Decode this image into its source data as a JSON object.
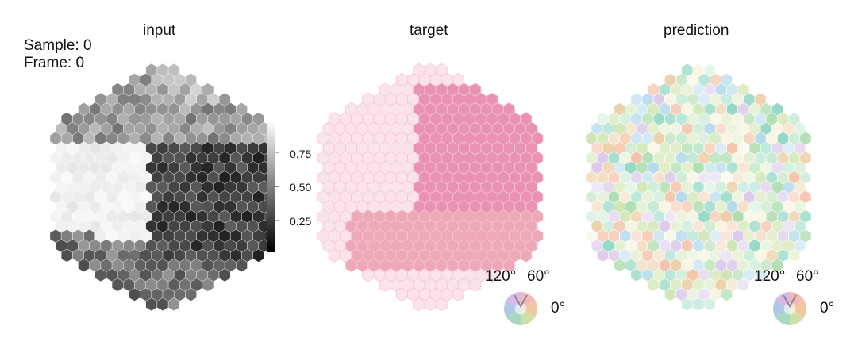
{
  "panels": [
    {
      "title": "input"
    },
    {
      "title": "target"
    },
    {
      "title": "prediction"
    }
  ],
  "info": {
    "sample": "Sample: 0",
    "frame": "Frame: 0"
  },
  "colorbar": {
    "ticks": [
      "0.75",
      "0.50",
      "0.25"
    ],
    "tick_values": [
      0.75,
      0.5,
      0.25
    ],
    "range": [
      0.02,
      0.98
    ],
    "colormap": "gray"
  },
  "legends": [
    {
      "a120": "120°",
      "a60": "60°",
      "a0": "0°"
    },
    {
      "a120": "120°",
      "a60": "60°",
      "a0": "0°"
    }
  ],
  "colors": {
    "target_bg": "#fbe3ea",
    "target_region_upper": "#e98cb0",
    "target_region_lower": "#eba0b0",
    "hex_edge": "#ffffff"
  }
}
